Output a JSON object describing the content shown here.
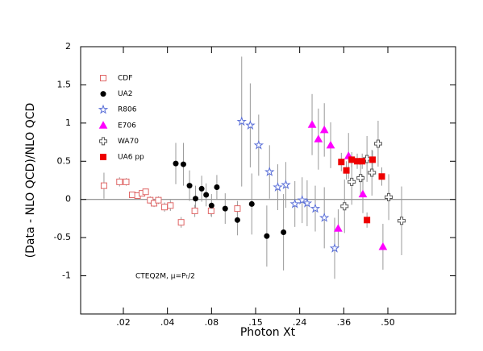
{
  "chart_data": {
    "type": "scatter",
    "xlabel": "Photon Xt",
    "ylabel": "(Data - NLO QCD)/NLO QCD",
    "annotation": "CTEQ2M, μ=Pₜ/2",
    "xlim": [
      0.01,
      0.8
    ],
    "xticks": [
      {
        "value": 0.02,
        "label": ".02"
      },
      {
        "value": 0.04,
        "label": ".04"
      },
      {
        "value": 0.08,
        "label": ".08"
      },
      {
        "value": 0.15,
        "label": ".15"
      },
      {
        "value": 0.24,
        "label": ".24"
      },
      {
        "value": 0.36,
        "label": ".36"
      },
      {
        "value": 0.5,
        "label": ".50"
      }
    ],
    "ylim": [
      -1.5,
      2
    ],
    "yticks": [
      -1,
      -0.5,
      0,
      0.5,
      1,
      1.5,
      2
    ],
    "series": [
      {
        "name": "CDF",
        "color": "#e06666",
        "marker": "open-square",
        "x": [
          0.0146,
          0.0188,
          0.0209,
          0.023,
          0.025,
          0.0268,
          0.0284,
          0.0305,
          0.0324,
          0.0347,
          0.0382,
          0.0419,
          0.0496,
          0.0615,
          0.0795,
          0.1157
        ],
        "values": [
          0.18,
          0.23,
          0.23,
          0.06,
          0.05,
          0.08,
          0.1,
          -0.01,
          -0.05,
          -0.01,
          -0.1,
          -0.08,
          -0.3,
          -0.15,
          -0.15,
          -0.12
        ],
        "errors": [
          0.17,
          0.06,
          0.05,
          0.03,
          0.03,
          0.04,
          0.04,
          0.05,
          0.05,
          0.05,
          0.06,
          0.07,
          0.07,
          0.08,
          0.07,
          0.1
        ]
      },
      {
        "name": "UA2",
        "color": "#000000",
        "marker": "circle",
        "x": [
          0.0456,
          0.0514,
          0.0566,
          0.0622,
          0.0685,
          0.0735,
          0.08,
          0.0863,
          0.0972,
          0.1157,
          0.142,
          0.169,
          0.202
        ],
        "values": [
          0.47,
          0.46,
          0.18,
          0.01,
          0.14,
          0.06,
          -0.08,
          0.16,
          -0.12,
          -0.27,
          -0.06,
          -0.48,
          -0.43
        ],
        "errors": [
          0.27,
          0.28,
          0.2,
          0.17,
          0.17,
          0.15,
          0.15,
          0.16,
          0.2,
          0.2,
          0.4,
          0.4,
          0.5
        ]
      },
      {
        "name": "R806",
        "color": "#5a6fd8",
        "marker": "open-star",
        "x": [
          0.123,
          0.139,
          0.155,
          0.174,
          0.19,
          0.207,
          0.228,
          0.2455,
          0.257,
          0.277,
          0.301,
          0.331
        ],
        "values": [
          1.02,
          0.97,
          0.71,
          0.36,
          0.16,
          0.19,
          -0.06,
          -0.01,
          -0.05,
          -0.12,
          -0.24,
          -0.64
        ],
        "errors": [
          0.85,
          0.55,
          0.4,
          0.35,
          0.3,
          0.3,
          0.3,
          0.3,
          0.3,
          0.3,
          0.4,
          0.4
        ]
      },
      {
        "name": "E706",
        "color": "#ff00ff",
        "marker": "triangle",
        "x": [
          0.269,
          0.285,
          0.301,
          0.319,
          0.342,
          0.373,
          0.415,
          0.482
        ],
        "values": [
          0.98,
          0.79,
          0.91,
          0.71,
          -0.38,
          0.57,
          0.07,
          -0.62
        ],
        "errors": [
          0.4,
          0.4,
          0.35,
          0.3,
          0.25,
          0.3,
          0.25,
          0.3
        ]
      },
      {
        "name": "WA70",
        "color": "#555555",
        "marker": "open-cross",
        "x": [
          0.362,
          0.382,
          0.408,
          0.428,
          0.444,
          0.465,
          0.503,
          0.55
        ],
        "values": [
          -0.09,
          0.23,
          0.28,
          0.53,
          0.35,
          0.73,
          0.03,
          -0.28
        ],
        "errors": [
          0.35,
          0.3,
          0.25,
          0.3,
          0.3,
          0.3,
          0.3,
          0.45
        ]
      },
      {
        "name": "UA6 pp",
        "color": "#ee0000",
        "marker": "square",
        "x": [
          0.352,
          0.367,
          0.382,
          0.398,
          0.413,
          0.428,
          0.446,
          0.478
        ],
        "values": [
          0.49,
          0.38,
          0.52,
          0.5,
          0.5,
          -0.27,
          0.52,
          0.3
        ],
        "errors": [
          0.12,
          0.12,
          0.1,
          0.1,
          0.1,
          0.1,
          0.12,
          0.12
        ]
      }
    ]
  }
}
